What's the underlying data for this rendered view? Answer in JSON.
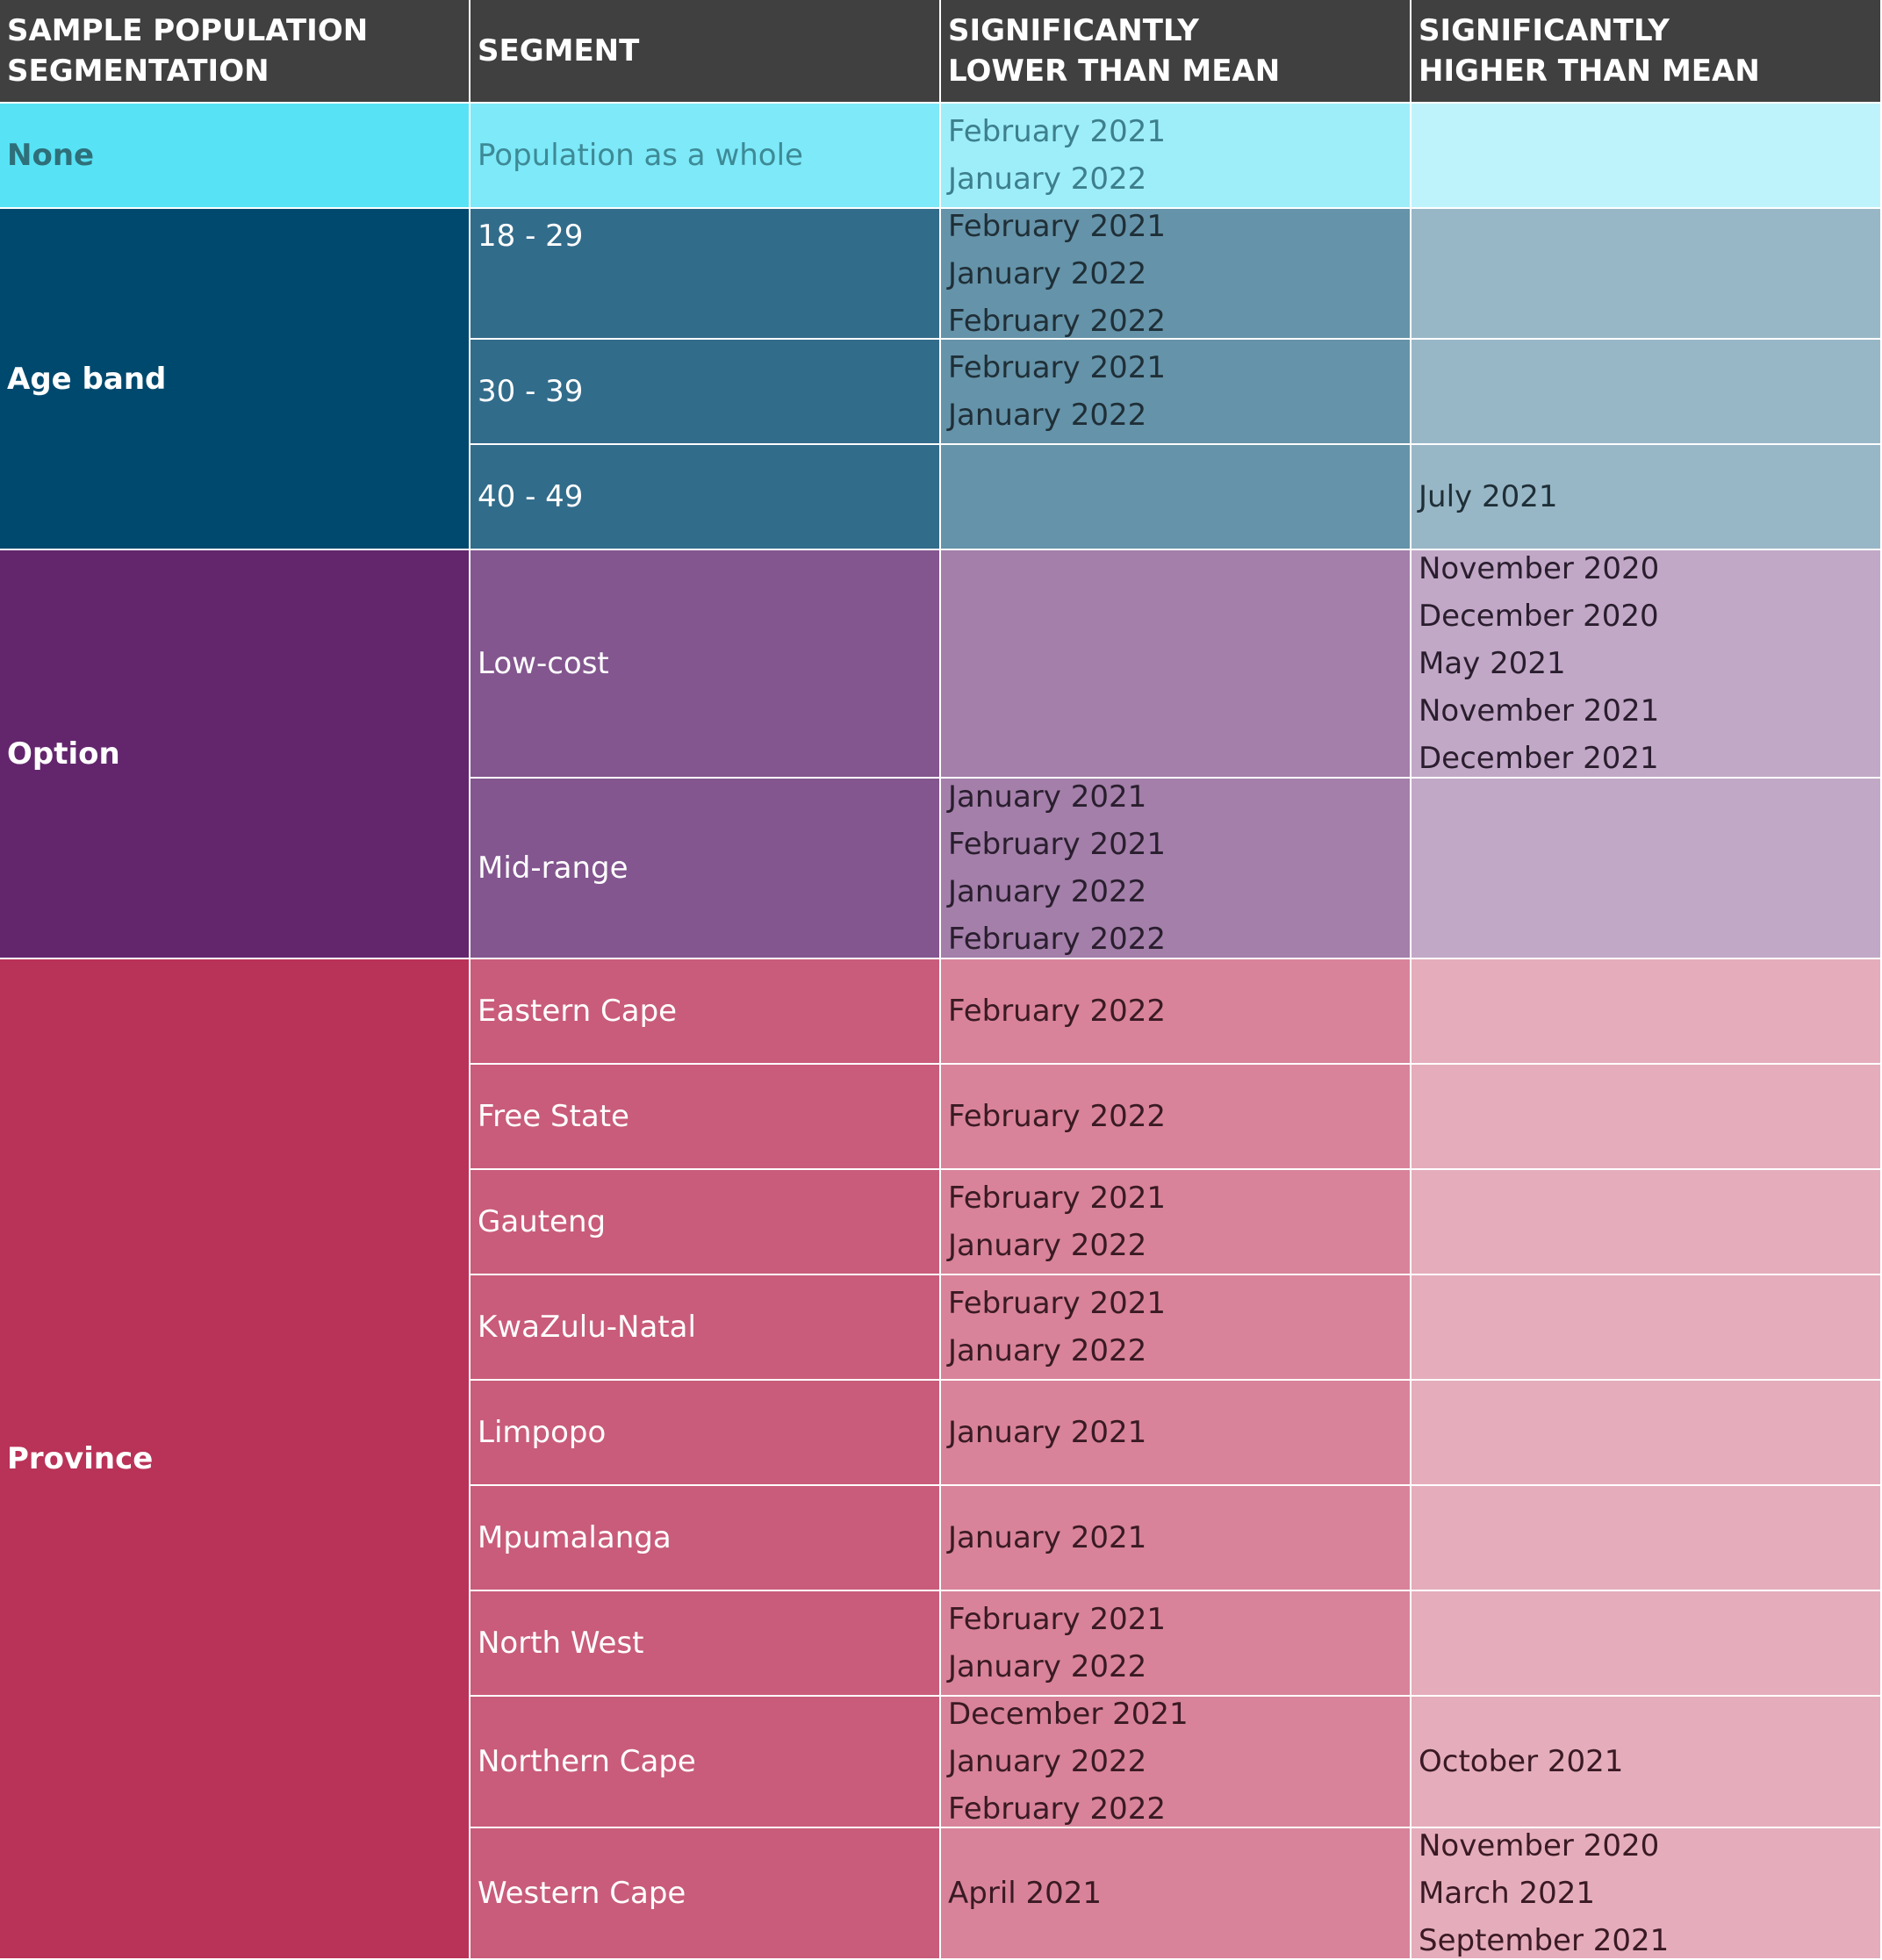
{
  "headers": {
    "col1": [
      "SAMPLE POPULATION",
      "SEGMENTATION"
    ],
    "col2": [
      "SEGMENT"
    ],
    "col3": [
      "SIGNIFICANTLY",
      "LOWER THAN MEAN"
    ],
    "col4": [
      "SIGNIFICANTLY",
      "HIGHER THAN MEAN"
    ]
  },
  "colors": {
    "header": "#404041",
    "none": [
      "#57e3f5",
      "#7ee9f8",
      "#9eeefa",
      "#bff3fb"
    ],
    "age_band": [
      "#00496e",
      "#326c8b",
      "#6593a9",
      "#98b7c6"
    ],
    "option": [
      "#63266d",
      "#83568f",
      "#a37faa",
      "#c2a8c7"
    ],
    "province": [
      "#b93257",
      "#c95c7a",
      "#d88399",
      "#e5adbc"
    ]
  },
  "groups": [
    {
      "category": "None",
      "rows": [
        {
          "segment": "Population as a whole",
          "lower": [
            "February 2021",
            "January 2022"
          ],
          "higher": []
        }
      ]
    },
    {
      "category": "Age band",
      "rows": [
        {
          "segment": "18 - 29",
          "lower": [
            "February 2021",
            "January 2022",
            "February 2022"
          ],
          "higher": []
        },
        {
          "segment": "30 - 39",
          "lower": [
            "February 2021",
            "January 2022"
          ],
          "higher": []
        },
        {
          "segment": "40 - 49",
          "lower": [],
          "higher": [
            "July 2021"
          ]
        }
      ]
    },
    {
      "category": "Option",
      "rows": [
        {
          "segment": "Low-cost",
          "lower": [],
          "higher": [
            "November 2020",
            "December 2020",
            "May 2021",
            "November 2021",
            "December 2021"
          ]
        },
        {
          "segment": "Mid-range",
          "lower": [
            "January 2021",
            "February 2021",
            "January 2022",
            "February 2022"
          ],
          "higher": []
        }
      ]
    },
    {
      "category": "Province",
      "rows": [
        {
          "segment": "Eastern Cape",
          "lower": [
            "February 2022"
          ],
          "higher": []
        },
        {
          "segment": "Free State",
          "lower": [
            "February 2022"
          ],
          "higher": []
        },
        {
          "segment": "Gauteng",
          "lower": [
            "February 2021",
            "January 2022"
          ],
          "higher": []
        },
        {
          "segment": "KwaZulu-Natal",
          "lower": [
            "February 2021",
            "January 2022"
          ],
          "higher": []
        },
        {
          "segment": "Limpopo",
          "lower": [
            "January 2021"
          ],
          "higher": []
        },
        {
          "segment": "Mpumalanga",
          "lower": [
            "January 2021"
          ],
          "higher": []
        },
        {
          "segment": "North West",
          "lower": [
            "February 2021",
            "January 2022"
          ],
          "higher": []
        },
        {
          "segment": "Northern Cape",
          "lower": [
            "December 2021",
            "January 2022",
            "February 2022"
          ],
          "higher": [
            "October 2021"
          ]
        },
        {
          "segment": "Western Cape",
          "lower": [
            "April 2021"
          ],
          "higher": [
            "November 2020",
            "March 2021",
            "September 2021"
          ]
        }
      ]
    }
  ]
}
